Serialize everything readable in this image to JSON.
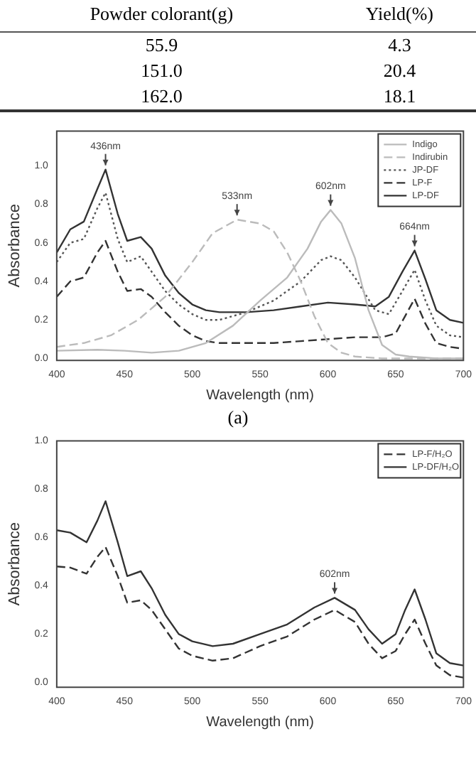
{
  "chart_data": [
    {
      "type": "other",
      "categories": [
        "Powder colorant(g)",
        "Yield(%)"
      ],
      "series": [
        {
          "values": [
            55.9,
            4.3
          ],
          "value_labels": [
            "55.9",
            "4.3"
          ]
        },
        {
          "values": [
            151.0,
            20.4
          ],
          "value_labels": [
            "151.0",
            "20.4"
          ]
        },
        {
          "values": [
            162.0,
            18.1
          ],
          "value_labels": [
            "162.0",
            "18.1"
          ]
        }
      ]
    },
    {
      "type": "line",
      "xlabel": "Wavelength (nm)",
      "ylabel": "Absorbance",
      "xlim": [
        400,
        700
      ],
      "xticks": [
        400,
        450,
        500,
        550,
        600,
        650,
        700
      ],
      "ylim": [
        -0.01,
        1.18
      ],
      "yticks": [
        {
          "value": 0,
          "label": "0.0"
        },
        {
          "value": 0.2,
          "label": "0.2"
        },
        {
          "value": 0.4,
          "label": "0.4"
        },
        {
          "value": 0.6,
          "label": "0.6"
        },
        {
          "value": 0.8,
          "label": "0.8"
        },
        {
          "value": 1.0,
          "label": "1.0"
        }
      ],
      "legend": "top right",
      "grid": false,
      "marker": "none",
      "annotations": [
        {
          "text": "436nm",
          "x": 436,
          "y": 0.98
        },
        {
          "text": "533nm",
          "x": 533,
          "y": 0.72
        },
        {
          "text": "602nm",
          "x": 602,
          "y": 0.77
        },
        {
          "text": "664nm",
          "x": 664,
          "y": 0.56
        },
        "(a)"
      ],
      "series": [
        {
          "name": "Indigo",
          "color": "#bbbbbb",
          "line_style": "solid",
          "x": [
            400,
            430,
            450,
            470,
            490,
            510,
            530,
            550,
            570,
            585,
            595,
            602,
            610,
            620,
            630,
            640,
            650,
            660,
            680,
            700
          ],
          "values": [
            0.04,
            0.045,
            0.04,
            0.03,
            0.04,
            0.08,
            0.17,
            0.3,
            0.42,
            0.57,
            0.71,
            0.77,
            0.7,
            0.52,
            0.25,
            0.07,
            0.02,
            0.01,
            0,
            0
          ]
        },
        {
          "name": "Indirubin",
          "color": "#bbbbbb",
          "line_style": "dashed",
          "x": [
            400,
            420,
            440,
            460,
            480,
            500,
            515,
            533,
            550,
            560,
            570,
            580,
            590,
            600,
            610,
            620,
            640,
            700
          ],
          "values": [
            0.06,
            0.08,
            0.12,
            0.2,
            0.32,
            0.5,
            0.65,
            0.72,
            0.7,
            0.66,
            0.55,
            0.4,
            0.22,
            0.08,
            0.03,
            0.01,
            0,
            0
          ]
        },
        {
          "name": "JP-DF",
          "color": "#555555",
          "line_style": "dotted",
          "x": [
            400,
            410,
            420,
            430,
            436,
            445,
            452,
            462,
            470,
            480,
            490,
            500,
            510,
            520,
            540,
            560,
            580,
            595,
            602,
            610,
            620,
            635,
            645,
            655,
            664,
            672,
            680,
            690,
            700
          ],
          "values": [
            0.5,
            0.6,
            0.62,
            0.78,
            0.86,
            0.62,
            0.5,
            0.53,
            0.45,
            0.35,
            0.28,
            0.23,
            0.2,
            0.2,
            0.24,
            0.3,
            0.4,
            0.51,
            0.53,
            0.51,
            0.42,
            0.25,
            0.23,
            0.35,
            0.46,
            0.3,
            0.17,
            0.12,
            0.11
          ]
        },
        {
          "name": "LP-F",
          "color": "#333333",
          "line_style": "dashed",
          "x": [
            400,
            410,
            420,
            430,
            436,
            445,
            452,
            462,
            470,
            480,
            490,
            500,
            510,
            520,
            560,
            580,
            600,
            620,
            640,
            650,
            657,
            664,
            672,
            680,
            690,
            700
          ],
          "values": [
            0.32,
            0.4,
            0.42,
            0.55,
            0.61,
            0.45,
            0.35,
            0.36,
            0.32,
            0.24,
            0.17,
            0.12,
            0.09,
            0.08,
            0.08,
            0.09,
            0.1,
            0.11,
            0.11,
            0.13,
            0.22,
            0.31,
            0.18,
            0.08,
            0.06,
            0.05
          ]
        },
        {
          "name": "LP-DF",
          "color": "#333333",
          "line_style": "solid",
          "x": [
            400,
            410,
            420,
            430,
            436,
            445,
            452,
            462,
            470,
            480,
            490,
            500,
            510,
            520,
            540,
            560,
            580,
            600,
            620,
            635,
            645,
            655,
            664,
            672,
            680,
            690,
            700
          ],
          "values": [
            0.55,
            0.67,
            0.71,
            0.88,
            0.98,
            0.75,
            0.61,
            0.63,
            0.57,
            0.43,
            0.34,
            0.28,
            0.25,
            0.24,
            0.24,
            0.25,
            0.27,
            0.29,
            0.28,
            0.27,
            0.32,
            0.45,
            0.56,
            0.41,
            0.25,
            0.2,
            0.185
          ]
        }
      ]
    },
    {
      "type": "line",
      "xlabel": "Wavelength (nm)",
      "ylabel": "Absorbance",
      "xlim": [
        400,
        700
      ],
      "xticks": [
        400,
        450,
        500,
        550,
        600,
        650,
        700
      ],
      "ylim": [
        -0.02,
        1.0
      ],
      "yticks": [
        {
          "value": 0,
          "label": "0.0"
        },
        {
          "value": 0.2,
          "label": "0.2"
        },
        {
          "value": 0.4,
          "label": "0.4"
        },
        {
          "value": 0.6,
          "label": "0.6"
        },
        {
          "value": 0.8,
          "label": "0.8"
        },
        {
          "value": 1.0,
          "label": "1.0"
        }
      ],
      "legend": "top right",
      "grid": false,
      "marker": "none",
      "annotations": [
        {
          "text": "602nm",
          "x": 605,
          "y": 0.35
        }
      ],
      "series": [
        {
          "name": "LP-F/H₂O",
          "color": "#333333",
          "line_style": "dashed",
          "x": [
            400,
            410,
            422,
            430,
            436,
            445,
            452,
            462,
            470,
            480,
            490,
            500,
            515,
            530,
            550,
            570,
            590,
            605,
            620,
            630,
            640,
            650,
            657,
            664,
            672,
            680,
            690,
            700
          ],
          "values": [
            0.48,
            0.475,
            0.45,
            0.52,
            0.56,
            0.44,
            0.33,
            0.34,
            0.3,
            0.22,
            0.14,
            0.11,
            0.09,
            0.1,
            0.15,
            0.19,
            0.26,
            0.3,
            0.25,
            0.16,
            0.1,
            0.13,
            0.2,
            0.26,
            0.16,
            0.07,
            0.03,
            0.02
          ]
        },
        {
          "name": "LP-DF/H₂O",
          "color": "#333333",
          "line_style": "solid",
          "x": [
            400,
            410,
            422,
            430,
            436,
            445,
            452,
            462,
            470,
            480,
            490,
            500,
            515,
            530,
            550,
            570,
            590,
            605,
            620,
            630,
            640,
            650,
            657,
            664,
            672,
            680,
            690,
            700
          ],
          "values": [
            0.63,
            0.62,
            0.58,
            0.67,
            0.75,
            0.58,
            0.44,
            0.46,
            0.39,
            0.28,
            0.2,
            0.17,
            0.15,
            0.16,
            0.2,
            0.24,
            0.31,
            0.35,
            0.3,
            0.22,
            0.16,
            0.2,
            0.3,
            0.385,
            0.26,
            0.12,
            0.08,
            0.07
          ]
        }
      ]
    }
  ]
}
